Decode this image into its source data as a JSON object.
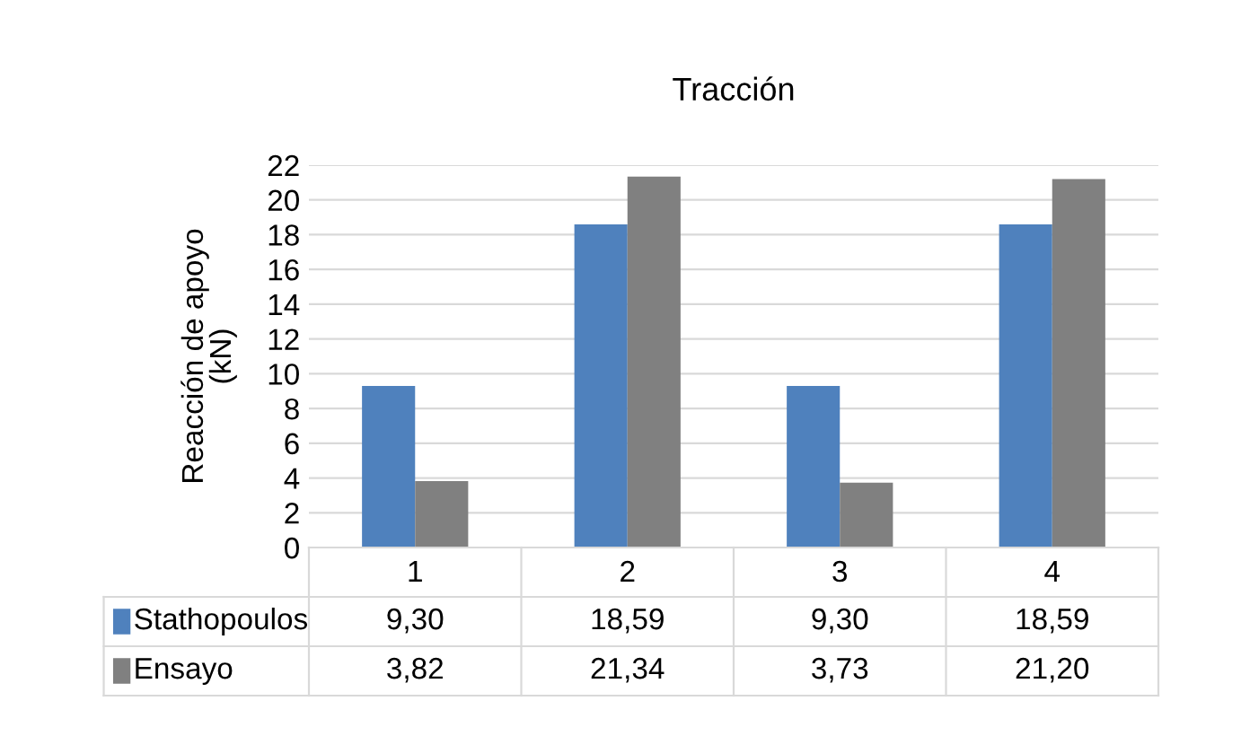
{
  "chart_data": {
    "type": "bar",
    "title": "Tracción",
    "ylabel": "Reacción de apoyo\n(kN)",
    "categories": [
      "1",
      "2",
      "3",
      "4"
    ],
    "series": [
      {
        "name": "Stathopoulos",
        "color": "#4f81bd",
        "values": [
          9.3,
          18.59,
          9.3,
          18.59
        ],
        "value_labels": [
          "9,30",
          "18,59",
          "9,30",
          "18,59"
        ]
      },
      {
        "name": "Ensayo",
        "color": "#808080",
        "values": [
          3.82,
          21.34,
          3.73,
          21.2
        ],
        "value_labels": [
          "3,82",
          "21,34",
          "3,73",
          "21,20"
        ]
      }
    ],
    "ylim": [
      0,
      22
    ],
    "yticks": [
      0,
      2,
      4,
      6,
      8,
      10,
      12,
      14,
      16,
      18,
      20,
      22
    ],
    "grid": "y",
    "legend": "bottom"
  }
}
